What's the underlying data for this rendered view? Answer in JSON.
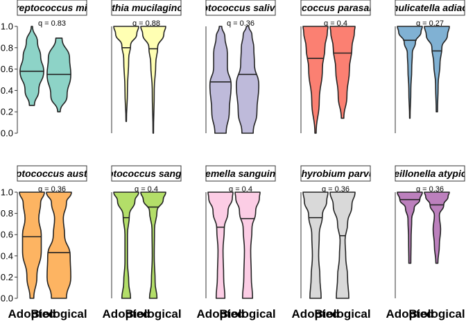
{
  "chart_data": {
    "type": "violin",
    "categories": [
      "Adopted",
      "Biological"
    ],
    "ylim": [
      0,
      1
    ],
    "yticks": [
      "0.0",
      "0.2",
      "0.4",
      "0.6",
      "0.8",
      "1.0"
    ],
    "panels": [
      {
        "strip": "Streptococcus mitis",
        "q": "q = 0.83",
        "color": "#8DD3C7",
        "violins": [
          {
            "min": 0.26,
            "max": 1.0,
            "median": 0.58,
            "profile": [
              [
                0.26,
                0.2
              ],
              [
                0.4,
                0.55
              ],
              [
                0.58,
                0.95
              ],
              [
                0.72,
                0.7
              ],
              [
                0.85,
                0.45
              ],
              [
                1.0,
                0.05
              ]
            ]
          },
          {
            "min": 0.2,
            "max": 0.89,
            "median": 0.55,
            "profile": [
              [
                0.2,
                0.1
              ],
              [
                0.35,
                0.65
              ],
              [
                0.55,
                0.95
              ],
              [
                0.7,
                0.85
              ],
              [
                0.89,
                0.25
              ]
            ]
          }
        ]
      },
      {
        "strip": "Rothia mucilaginosa",
        "q": "q = 0.88",
        "color": "#FFFFB3",
        "violins": [
          {
            "min": 0.11,
            "max": 1.0,
            "median": 0.8,
            "profile": [
              [
                0.11,
                0.02
              ],
              [
                0.4,
                0.1
              ],
              [
                0.7,
                0.2
              ],
              [
                0.82,
                0.35
              ],
              [
                0.93,
                0.85
              ],
              [
                1.0,
                1.0
              ]
            ]
          },
          {
            "min": 0.0,
            "max": 1.0,
            "median": 0.79,
            "profile": [
              [
                0.0,
                0.02
              ],
              [
                0.4,
                0.08
              ],
              [
                0.65,
                0.2
              ],
              [
                0.8,
                0.35
              ],
              [
                0.93,
                0.85
              ],
              [
                1.0,
                1.0
              ]
            ]
          }
        ]
      },
      {
        "strip": "Streptococcus salivarius",
        "q": "q = 0.36",
        "color": "#BEBADA",
        "violins": [
          {
            "min": 0.0,
            "max": 1.0,
            "median": 0.48,
            "profile": [
              [
                0.0,
                0.45
              ],
              [
                0.2,
                0.7
              ],
              [
                0.45,
                0.85
              ],
              [
                0.62,
                0.55
              ],
              [
                0.75,
                0.55
              ],
              [
                0.9,
                0.35
              ],
              [
                1.0,
                0.1
              ]
            ]
          },
          {
            "min": 0.0,
            "max": 1.0,
            "median": 0.55,
            "profile": [
              [
                0.0,
                0.45
              ],
              [
                0.2,
                0.75
              ],
              [
                0.45,
                0.9
              ],
              [
                0.65,
                0.55
              ],
              [
                0.8,
                0.5
              ],
              [
                0.92,
                0.35
              ],
              [
                1.0,
                0.1
              ]
            ]
          }
        ]
      },
      {
        "strip": "Streptococcus parasanguinis",
        "q": "q = 0.4",
        "color": "#FB8072",
        "violins": [
          {
            "min": 0.0,
            "max": 1.0,
            "median": 0.7,
            "profile": [
              [
                0.0,
                0.05
              ],
              [
                0.3,
                0.3
              ],
              [
                0.6,
                0.55
              ],
              [
                0.8,
                0.75
              ],
              [
                0.95,
                0.95
              ],
              [
                1.0,
                1.0
              ]
            ]
          },
          {
            "min": 0.14,
            "max": 1.0,
            "median": 0.75,
            "profile": [
              [
                0.14,
                0.1
              ],
              [
                0.35,
                0.35
              ],
              [
                0.6,
                0.55
              ],
              [
                0.8,
                0.75
              ],
              [
                0.95,
                0.95
              ],
              [
                1.0,
                1.0
              ]
            ]
          }
        ]
      },
      {
        "strip": "Granulicatella adiacens",
        "q": "q = 0.27",
        "color": "#80B1D3",
        "violins": [
          {
            "min": 0.14,
            "max": 1.0,
            "median": 0.87,
            "profile": [
              [
                0.14,
                0.02
              ],
              [
                0.4,
                0.08
              ],
              [
                0.6,
                0.15
              ],
              [
                0.75,
                0.2
              ],
              [
                0.85,
                0.45
              ],
              [
                0.95,
                0.9
              ],
              [
                1.0,
                1.0
              ]
            ]
          },
          {
            "min": 0.2,
            "max": 1.0,
            "median": 0.77,
            "profile": [
              [
                0.2,
                0.05
              ],
              [
                0.45,
                0.1
              ],
              [
                0.65,
                0.25
              ],
              [
                0.8,
                0.4
              ],
              [
                0.92,
                0.85
              ],
              [
                1.0,
                1.0
              ]
            ]
          }
        ]
      },
      {
        "strip": "Streptococcus australis",
        "q": "q = 0.36",
        "color": "#FDB462",
        "violins": [
          {
            "min": 0.0,
            "max": 1.0,
            "median": 0.58,
            "profile": [
              [
                0.0,
                0.15
              ],
              [
                0.2,
                0.4
              ],
              [
                0.45,
                0.75
              ],
              [
                0.6,
                0.75
              ],
              [
                0.75,
                0.55
              ],
              [
                0.9,
                0.7
              ],
              [
                1.0,
                1.0
              ]
            ]
          },
          {
            "min": 0.0,
            "max": 1.0,
            "median": 0.43,
            "profile": [
              [
                0.0,
                0.6
              ],
              [
                0.2,
                0.95
              ],
              [
                0.4,
                0.9
              ],
              [
                0.6,
                0.45
              ],
              [
                0.75,
                0.35
              ],
              [
                0.9,
                0.6
              ],
              [
                1.0,
                1.0
              ]
            ]
          }
        ]
      },
      {
        "strip": "Streptococcus sanguinis",
        "q": "q = 0.4",
        "color": "#B3DE69",
        "violins": [
          {
            "min": 0.0,
            "max": 1.0,
            "median": 0.76,
            "profile": [
              [
                0.0,
                0.35
              ],
              [
                0.15,
                0.2
              ],
              [
                0.35,
                0.1
              ],
              [
                0.6,
                0.1
              ],
              [
                0.78,
                0.25
              ],
              [
                0.92,
                0.7
              ],
              [
                1.0,
                1.0
              ]
            ]
          },
          {
            "min": 0.0,
            "max": 1.0,
            "median": 0.86,
            "profile": [
              [
                0.0,
                0.3
              ],
              [
                0.15,
                0.15
              ],
              [
                0.4,
                0.08
              ],
              [
                0.65,
                0.1
              ],
              [
                0.82,
                0.3
              ],
              [
                0.93,
                0.8
              ],
              [
                1.0,
                1.0
              ]
            ]
          }
        ]
      },
      {
        "strip": "Gemella sanguinis",
        "q": "q = 0.4",
        "color": "#FCCDE5",
        "violins": [
          {
            "min": 0.0,
            "max": 1.0,
            "median": 0.67,
            "profile": [
              [
                0.0,
                0.35
              ],
              [
                0.2,
                0.25
              ],
              [
                0.45,
                0.2
              ],
              [
                0.65,
                0.3
              ],
              [
                0.82,
                0.6
              ],
              [
                0.95,
                0.95
              ],
              [
                1.0,
                1.0
              ]
            ]
          },
          {
            "min": 0.0,
            "max": 1.0,
            "median": 0.75,
            "profile": [
              [
                0.0,
                0.4
              ],
              [
                0.2,
                0.3
              ],
              [
                0.45,
                0.25
              ],
              [
                0.65,
                0.35
              ],
              [
                0.82,
                0.65
              ],
              [
                0.95,
                0.95
              ],
              [
                1.0,
                1.0
              ]
            ]
          }
        ]
      },
      {
        "strip": "Porphyrobium parvulum",
        "q": "q = 0.36",
        "color": "#D9D9D9",
        "violins": [
          {
            "min": 0.0,
            "max": 1.0,
            "median": 0.76,
            "profile": [
              [
                0.0,
                0.45
              ],
              [
                0.2,
                0.35
              ],
              [
                0.4,
                0.25
              ],
              [
                0.6,
                0.3
              ],
              [
                0.78,
                0.55
              ],
              [
                0.92,
                0.9
              ],
              [
                1.0,
                1.0
              ]
            ]
          },
          {
            "min": 0.0,
            "max": 1.0,
            "median": 0.59,
            "profile": [
              [
                0.0,
                0.5
              ],
              [
                0.2,
                0.4
              ],
              [
                0.4,
                0.25
              ],
              [
                0.55,
                0.2
              ],
              [
                0.7,
                0.4
              ],
              [
                0.88,
                0.75
              ],
              [
                1.0,
                1.0
              ]
            ]
          }
        ]
      },
      {
        "strip": "Veillonella atypica",
        "q": "q = 0.36",
        "color": "#BC80BD",
        "violins": [
          {
            "min": 0.33,
            "max": 1.0,
            "median": 0.93,
            "profile": [
              [
                0.33,
                0.08
              ],
              [
                0.55,
                0.1
              ],
              [
                0.75,
                0.15
              ],
              [
                0.85,
                0.35
              ],
              [
                0.93,
                0.8
              ],
              [
                1.0,
                1.0
              ]
            ]
          },
          {
            "min": 0.33,
            "max": 1.0,
            "median": 0.88,
            "profile": [
              [
                0.33,
                0.08
              ],
              [
                0.5,
                0.2
              ],
              [
                0.65,
                0.3
              ],
              [
                0.78,
                0.2
              ],
              [
                0.88,
                0.55
              ],
              [
                0.96,
                0.9
              ],
              [
                1.0,
                1.0
              ]
            ]
          }
        ]
      }
    ]
  }
}
